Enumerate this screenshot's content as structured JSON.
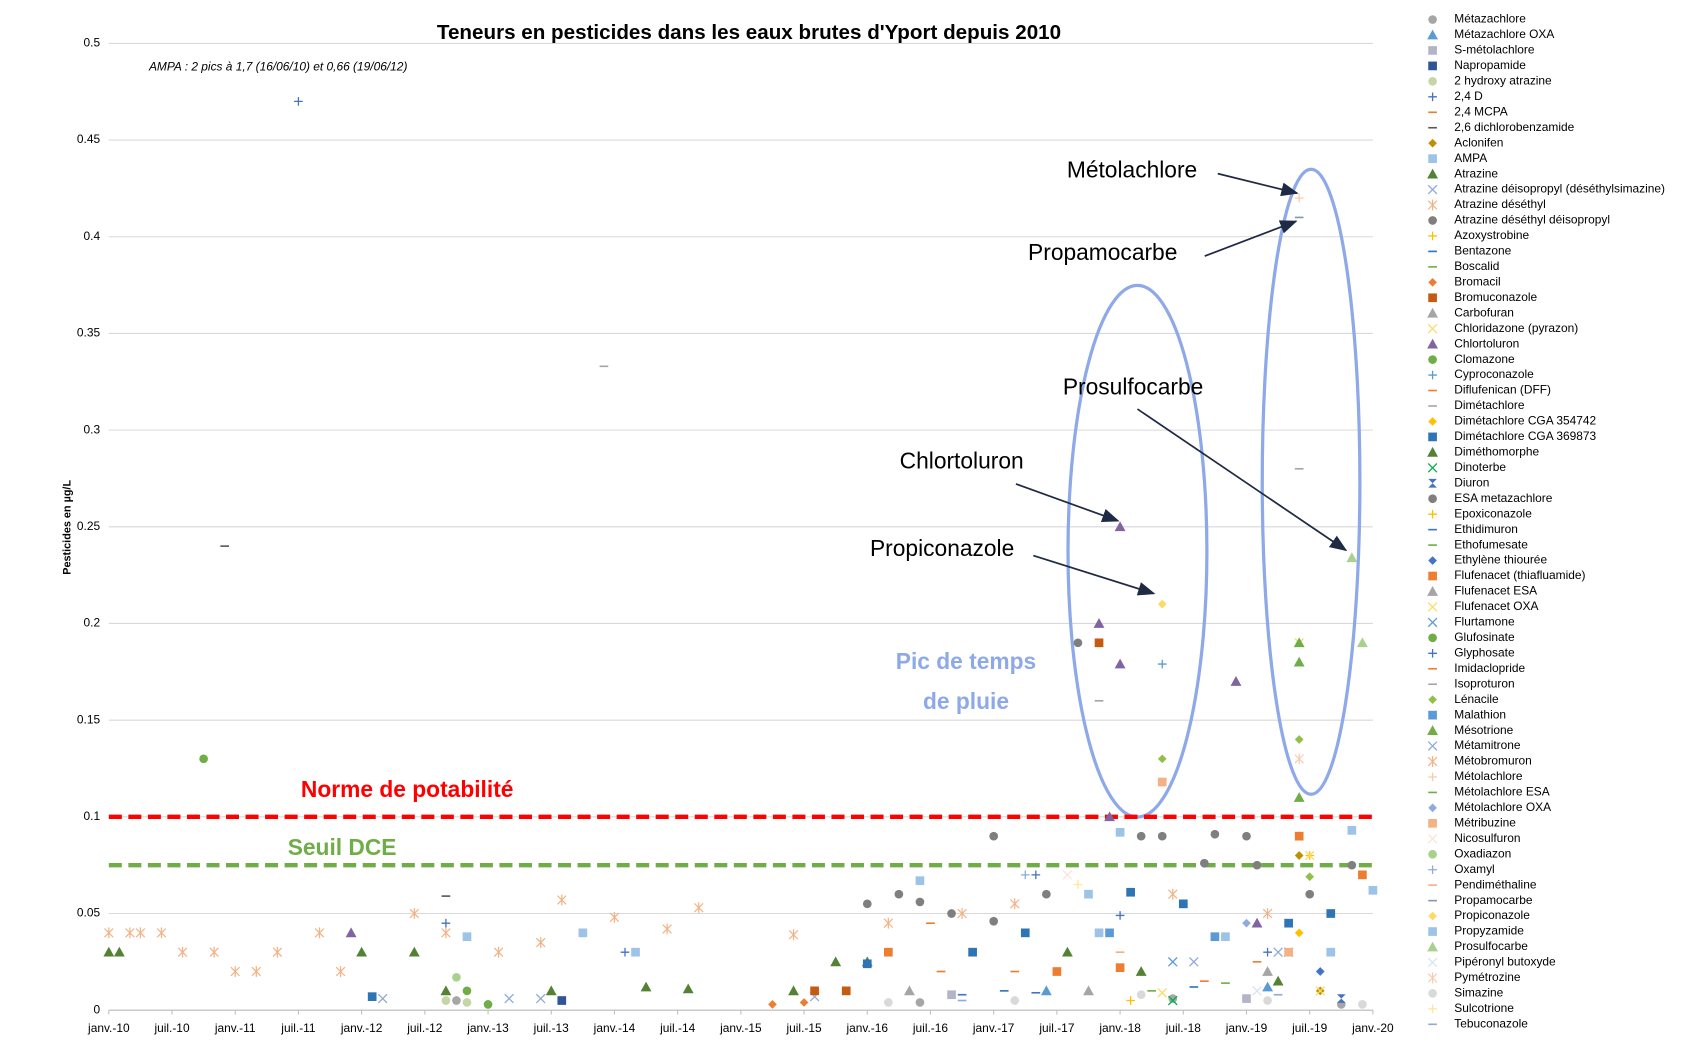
{
  "chart_data": {
    "type": "scatter",
    "title": "Teneurs en pesticides dans les eaux brutes d'Yport depuis 2010",
    "ylabel": "Pesticides en µg/L",
    "note": "AMPA : 2 pics à 1,7 (16/06/10) et 0,66 (19/06/12)",
    "grid": true,
    "legend": "right",
    "xlim": [
      "2010-01",
      "2020-01"
    ],
    "ylim": [
      0,
      0.5
    ],
    "yticks": [
      0,
      0.05,
      0.1,
      0.15,
      0.2,
      0.25,
      0.3,
      0.35,
      0.4,
      0.45,
      0.5
    ],
    "xticks": [
      {
        "value": "2010-01",
        "label": "janv.-10"
      },
      {
        "value": "2010-07",
        "label": "juil.-10"
      },
      {
        "value": "2011-01",
        "label": "janv.-11"
      },
      {
        "value": "2011-07",
        "label": "juil.-11"
      },
      {
        "value": "2012-01",
        "label": "janv.-12"
      },
      {
        "value": "2012-07",
        "label": "juil.-12"
      },
      {
        "value": "2013-01",
        "label": "janv.-13"
      },
      {
        "value": "2013-07",
        "label": "juil.-13"
      },
      {
        "value": "2014-01",
        "label": "janv.-14"
      },
      {
        "value": "2014-07",
        "label": "juil.-14"
      },
      {
        "value": "2015-01",
        "label": "janv.-15"
      },
      {
        "value": "2015-07",
        "label": "juil.-15"
      },
      {
        "value": "2016-01",
        "label": "janv.-16"
      },
      {
        "value": "2016-07",
        "label": "juil.-16"
      },
      {
        "value": "2017-01",
        "label": "janv.-17"
      },
      {
        "value": "2017-07",
        "label": "juil.-17"
      },
      {
        "value": "2018-01",
        "label": "janv.-18"
      },
      {
        "value": "2018-07",
        "label": "juil.-18"
      },
      {
        "value": "2019-01",
        "label": "janv.-19"
      },
      {
        "value": "2019-07",
        "label": "juil.-19"
      },
      {
        "value": "2020-01",
        "label": "janv.-20"
      }
    ],
    "hlines": [
      {
        "label": "Norme de potabilité",
        "value": 0.1,
        "color": "#ff0000"
      },
      {
        "label": "Seuil DCE",
        "value": 0.075,
        "color": "#70ad47"
      }
    ],
    "annotations": [
      "Métolachlore",
      "Propamocarbe",
      "Prosulfocarbe",
      "Chlortoluron",
      "Propiconazole"
    ],
    "rain_note": [
      "Pic de temps",
      "de pluie"
    ],
    "series": [
      {
        "name": "Métazachlore",
        "color": "#a6a6a6",
        "marker": "circle",
        "x": [
          "2012-10",
          "2016-06",
          "2018-06",
          "2019-10"
        ],
        "values": [
          0.005,
          0.004,
          0.006,
          0.003
        ]
      },
      {
        "name": "Métazachlore OXA",
        "color": "#5b9bd5",
        "marker": "triangle",
        "x": [
          "2017-06",
          "2019-03"
        ],
        "values": [
          0.01,
          0.012
        ]
      },
      {
        "name": "S-métolachlore",
        "color": "#b4b4c8",
        "marker": "square",
        "x": [
          "2016-09",
          "2019-01"
        ],
        "values": [
          0.008,
          0.006
        ]
      },
      {
        "name": "Napropamide",
        "color": "#2f5597",
        "marker": "square",
        "x": [
          "2013-08"
        ],
        "values": [
          0.005
        ]
      },
      {
        "name": "2 hydroxy atrazine",
        "color": "#c5d5a8",
        "marker": "circle",
        "x": [
          "2012-09",
          "2012-11"
        ],
        "values": [
          0.005,
          0.004
        ]
      },
      {
        "name": "2,4 D",
        "color": "#4472c4",
        "marker": "plus",
        "x": [
          "2011-07",
          "2012-09"
        ],
        "values": [
          0.47,
          0.045
        ]
      },
      {
        "name": "2,4 MCPA",
        "color": "#ed7d31",
        "marker": "dash",
        "x": [
          "2017-03",
          "2018-09"
        ],
        "values": [
          0.02,
          0.015
        ]
      },
      {
        "name": "2,6 dichlorobenzamide",
        "color": "#595959",
        "marker": "dash",
        "x": [
          "2010-12",
          "2012-09"
        ],
        "values": [
          0.24,
          0.059
        ]
      },
      {
        "name": "Aclonifen",
        "color": "#bf8f00",
        "marker": "diamond",
        "x": [
          "2019-06",
          "2019-08"
        ],
        "values": [
          0.08,
          0.01
        ]
      },
      {
        "name": "AMPA",
        "color": "#9dc3e6",
        "marker": "square",
        "x": [
          "2012-11",
          "2013-10",
          "2014-03",
          "2016-06",
          "2017-10",
          "2018-01",
          "2019-11",
          "2020-01"
        ],
        "values": [
          0.038,
          0.04,
          0.03,
          0.067,
          0.06,
          0.092,
          0.093,
          0.062
        ]
      },
      {
        "name": "Atrazine",
        "color": "#548235",
        "marker": "triangle",
        "x": [
          "2010-01",
          "2010-02",
          "2012-01",
          "2012-06",
          "2012-09",
          "2013-07",
          "2014-04",
          "2014-08",
          "2015-06",
          "2015-10",
          "2016-01"
        ],
        "values": [
          0.03,
          0.03,
          0.03,
          0.03,
          0.01,
          0.01,
          0.012,
          0.011,
          0.01,
          0.025,
          0.025
        ]
      },
      {
        "name": "Atrazine déisopropyl (déséthylsimazine)",
        "color": "#8faadc",
        "marker": "x",
        "x": [
          "2012-03",
          "2013-03",
          "2013-06",
          "2015-08"
        ],
        "values": [
          0.006,
          0.006,
          0.006,
          0.007
        ]
      },
      {
        "name": "Atrazine déséthyl",
        "color": "#f4b183",
        "marker": "star",
        "x": [
          "2010-01",
          "2010-03",
          "2010-04",
          "2010-06",
          "2010-08",
          "2010-11",
          "2011-01",
          "2011-03",
          "2011-05",
          "2011-09",
          "2011-11",
          "2012-06",
          "2012-09",
          "2013-02",
          "2013-06",
          "2013-08",
          "2014-01",
          "2014-06",
          "2014-09",
          "2015-06",
          "2016-03",
          "2016-10",
          "2017-03"
        ],
        "values": [
          0.04,
          0.04,
          0.04,
          0.04,
          0.03,
          0.03,
          0.02,
          0.02,
          0.03,
          0.04,
          0.02,
          0.05,
          0.04,
          0.03,
          0.035,
          0.057,
          0.048,
          0.042,
          0.053,
          0.039,
          0.045,
          0.05,
          0.055
        ]
      },
      {
        "name": "Atrazine déséthyl déisopropyl",
        "color": "#7f7f7f",
        "marker": "circle",
        "x": [
          "2017-01",
          "2018-05",
          "2018-10",
          "2019-01"
        ],
        "values": [
          0.09,
          0.09,
          0.091,
          0.09
        ]
      },
      {
        "name": "Azoxystrobine",
        "color": "#ffc000",
        "marker": "plus",
        "x": [
          "2019-07"
        ],
        "values": [
          0.08
        ]
      },
      {
        "name": "Bentazone",
        "color": "#2e75b6",
        "marker": "dash",
        "x": [
          "2017-02",
          "2018-08"
        ],
        "values": [
          0.01,
          0.012
        ]
      },
      {
        "name": "Boscalid",
        "color": "#70ad47",
        "marker": "dash",
        "x": [
          "2018-02",
          "2019-09"
        ],
        "values": [
          0.075,
          0.03
        ]
      },
      {
        "name": "Bromacil",
        "color": "#ed7d31",
        "marker": "diamond",
        "x": [
          "2015-04",
          "2015-07"
        ],
        "values": [
          0.003,
          0.004
        ]
      },
      {
        "name": "Bromuconazole",
        "color": "#c55a11",
        "marker": "square",
        "x": [
          "2015-08",
          "2015-11",
          "2017-11"
        ],
        "values": [
          0.01,
          0.01,
          0.19
        ]
      },
      {
        "name": "Carbofuran",
        "color": "#a5a5a5",
        "marker": "triangle",
        "x": [
          "2016-05"
        ],
        "values": [
          0.01
        ]
      },
      {
        "name": "Chloridazone (pyrazon)",
        "color": "#ffd966",
        "marker": "x",
        "x": [
          "2019-06",
          "2019-07"
        ],
        "values": [
          0.19,
          0.08
        ]
      },
      {
        "name": "Chlortoluron",
        "color": "#8064a2",
        "marker": "triangle",
        "x": [
          "2011-12",
          "2017-11",
          "2017-12",
          "2018-01",
          "2018-01",
          "2018-12",
          "2019-02"
        ],
        "values": [
          0.04,
          0.2,
          0.1,
          0.25,
          0.179,
          0.17,
          0.045
        ]
      },
      {
        "name": "Clomazone",
        "color": "#70ad47",
        "marker": "circle",
        "x": [
          "2010-10"
        ],
        "values": [
          0.13
        ]
      },
      {
        "name": "Cyproconazole",
        "color": "#5b9bd5",
        "marker": "plus",
        "x": [
          "2018-05"
        ],
        "values": [
          0.179
        ]
      },
      {
        "name": "Diflufenican (DFF)",
        "color": "#ed7d31",
        "marker": "dash",
        "x": [
          "2016-08",
          "2019-02"
        ],
        "values": [
          0.02,
          0.025
        ]
      },
      {
        "name": "Dimétachlore",
        "color": "#a5a5a5",
        "marker": "dash",
        "x": [
          "2017-11"
        ],
        "values": [
          0.16
        ]
      },
      {
        "name": "Dimétachlore CGA 354742",
        "color": "#ffc000",
        "marker": "diamond",
        "x": [
          "2019-06"
        ],
        "values": [
          0.04
        ]
      },
      {
        "name": "Dimétachlore CGA 369873",
        "color": "#2e75b6",
        "marker": "square",
        "x": [
          "2012-02",
          "2016-01",
          "2016-11",
          "2017-04",
          "2018-02",
          "2018-07",
          "2019-05",
          "2019-09"
        ],
        "values": [
          0.007,
          0.024,
          0.03,
          0.04,
          0.061,
          0.055,
          0.045,
          0.05
        ]
      },
      {
        "name": "Diméthomorphe",
        "color": "#548235",
        "marker": "triangle",
        "x": [
          "2017-08",
          "2018-03",
          "2019-04"
        ],
        "values": [
          0.03,
          0.02,
          0.015
        ]
      },
      {
        "name": "Dinoterbe",
        "color": "#00b050",
        "marker": "x",
        "x": [
          "2018-06"
        ],
        "values": [
          0.005
        ]
      },
      {
        "name": "Diuron",
        "color": "#4472c4",
        "marker": "bowtie",
        "x": [
          "2019-10"
        ],
        "values": [
          0.006
        ]
      },
      {
        "name": "ESA metazachlore",
        "color": "#7f7f7f",
        "marker": "circle",
        "x": [
          "2016-01",
          "2016-04",
          "2016-06",
          "2016-09",
          "2017-01",
          "2017-06",
          "2017-09",
          "2018-03",
          "2018-09",
          "2019-02",
          "2019-07",
          "2019-11"
        ],
        "values": [
          0.055,
          0.06,
          0.056,
          0.05,
          0.046,
          0.06,
          0.19,
          0.09,
          0.076,
          0.075,
          0.06,
          0.075
        ]
      },
      {
        "name": "Epoxiconazole",
        "color": "#ffc000",
        "marker": "plus",
        "x": [
          "2018-02"
        ],
        "values": [
          0.005
        ]
      },
      {
        "name": "Ethidimuron",
        "color": "#4472c4",
        "marker": "dash",
        "x": [
          "2016-10",
          "2017-05"
        ],
        "values": [
          0.008,
          0.009
        ]
      },
      {
        "name": "Ethofumesate",
        "color": "#70ad47",
        "marker": "dash",
        "x": [
          "2018-04"
        ],
        "values": [
          0.01
        ]
      },
      {
        "name": "Ethylène thiourée",
        "color": "#4472c4",
        "marker": "diamond",
        "x": [
          "2019-08"
        ],
        "values": [
          0.02
        ]
      },
      {
        "name": "Flufenacet (thiafluamide)",
        "color": "#ed7d31",
        "marker": "square",
        "x": [
          "2016-03",
          "2017-07",
          "2018-01",
          "2019-06",
          "2019-12"
        ],
        "values": [
          0.03,
          0.02,
          0.022,
          0.09,
          0.07
        ]
      },
      {
        "name": "Flufenacet ESA",
        "color": "#a5a5a5",
        "marker": "triangle",
        "x": [
          "2017-10",
          "2019-03"
        ],
        "values": [
          0.01,
          0.02
        ]
      },
      {
        "name": "Flufenacet OXA",
        "color": "#ffd966",
        "marker": "x",
        "x": [
          "2018-05",
          "2019-08"
        ],
        "values": [
          0.009,
          0.01
        ]
      },
      {
        "name": "Flurtamone",
        "color": "#5b9bd5",
        "marker": "x",
        "x": [
          "2018-06",
          "2019-05"
        ],
        "values": [
          0.025,
          0.03
        ]
      },
      {
        "name": "Glufosinate",
        "color": "#70ad47",
        "marker": "circle",
        "x": [
          "2012-11",
          "2013-01"
        ],
        "values": [
          0.01,
          0.003
        ]
      },
      {
        "name": "Glyphosate",
        "color": "#4472c4",
        "marker": "plus",
        "x": [
          "2014-02",
          "2017-05",
          "2018-01",
          "2019-03"
        ],
        "values": [
          0.03,
          0.07,
          0.049,
          0.03
        ]
      },
      {
        "name": "Imidaclopride",
        "color": "#ed7d31",
        "marker": "dash",
        "x": [
          "2016-07"
        ],
        "values": [
          0.045
        ]
      },
      {
        "name": "Isoproturon",
        "color": "#a5a5a5",
        "marker": "dash",
        "x": [
          "2013-12",
          "2019-06"
        ],
        "values": [
          0.333,
          0.28
        ]
      },
      {
        "name": "Lénacile",
        "color": "#92c047",
        "marker": "diamond",
        "x": [
          "2018-05",
          "2019-06",
          "2019-07"
        ],
        "values": [
          0.13,
          0.14,
          0.069
        ]
      },
      {
        "name": "Malathion",
        "color": "#5b9bd5",
        "marker": "square",
        "x": [
          "2017-12",
          "2018-10"
        ],
        "values": [
          0.04,
          0.038
        ]
      },
      {
        "name": "Mésotrione",
        "color": "#70ad47",
        "marker": "triangle",
        "x": [
          "2019-06",
          "2019-06",
          "2019-06"
        ],
        "values": [
          0.19,
          0.18,
          0.11
        ]
      },
      {
        "name": "Métamitrone",
        "color": "#8faadc",
        "marker": "x",
        "x": [
          "2018-08",
          "2019-04"
        ],
        "values": [
          0.025,
          0.03
        ]
      },
      {
        "name": "Métobromuron",
        "color": "#f4b183",
        "marker": "star",
        "x": [
          "2018-06",
          "2019-03"
        ],
        "values": [
          0.06,
          0.05
        ]
      },
      {
        "name": "Métolachlore",
        "color": "#f8cbad",
        "marker": "plus",
        "x": [
          "2019-06"
        ],
        "values": [
          0.42
        ]
      },
      {
        "name": "Métolachlore ESA",
        "color": "#70ad47",
        "marker": "dash",
        "x": [
          "2018-11"
        ],
        "values": [
          0.014
        ]
      },
      {
        "name": "Métolachlore OXA",
        "color": "#8faadc",
        "marker": "diamond",
        "x": [
          "2019-01"
        ],
        "values": [
          0.045
        ]
      },
      {
        "name": "Métribuzine",
        "color": "#f4b183",
        "marker": "square",
        "x": [
          "2018-05",
          "2019-05"
        ],
        "values": [
          0.118,
          0.03
        ]
      },
      {
        "name": "Nicosulfuron",
        "color": "#fbe5d6",
        "marker": "x",
        "x": [
          "2017-08"
        ],
        "values": [
          0.07
        ]
      },
      {
        "name": "Oxadiazon",
        "color": "#a9d18e",
        "marker": "circle",
        "x": [
          "2012-10"
        ],
        "values": [
          0.017
        ]
      },
      {
        "name": "Oxamyl",
        "color": "#8faadc",
        "marker": "plus",
        "x": [
          "2017-04"
        ],
        "values": [
          0.07
        ]
      },
      {
        "name": "Pendiméthaline",
        "color": "#f4b183",
        "marker": "dash",
        "x": [
          "2018-01"
        ],
        "values": [
          0.03
        ]
      },
      {
        "name": "Propamocarbe",
        "color": "#8497b0",
        "marker": "dash",
        "x": [
          "2019-06"
        ],
        "values": [
          0.41
        ]
      },
      {
        "name": "Propiconazole",
        "color": "#ffd966",
        "marker": "diamond",
        "x": [
          "2018-05"
        ],
        "values": [
          0.21
        ]
      },
      {
        "name": "Propyzamide",
        "color": "#9dc3e6",
        "marker": "square",
        "x": [
          "2017-11",
          "2018-11",
          "2019-09"
        ],
        "values": [
          0.04,
          0.038,
          0.03
        ]
      },
      {
        "name": "Prosulfocarbe",
        "color": "#a9d18e",
        "marker": "triangle",
        "x": [
          "2019-11",
          "2019-12"
        ],
        "values": [
          0.234,
          0.19
        ]
      },
      {
        "name": "Pipéronyl butoxyde",
        "color": "#dae3f3",
        "marker": "x",
        "x": [
          "2019-02"
        ],
        "values": [
          0.01
        ]
      },
      {
        "name": "Pymétrozine",
        "color": "#f8cbad",
        "marker": "star",
        "x": [
          "2019-06"
        ],
        "values": [
          0.13
        ]
      },
      {
        "name": "Simazine",
        "color": "#d9d9d9",
        "marker": "circle",
        "x": [
          "2016-03",
          "2017-03",
          "2018-03",
          "2019-03",
          "2019-12"
        ],
        "values": [
          0.004,
          0.005,
          0.008,
          0.005,
          0.003
        ]
      },
      {
        "name": "Sulcotrione",
        "color": "#ffe699",
        "marker": "plus",
        "x": [
          "2017-09"
        ],
        "values": [
          0.065
        ]
      },
      {
        "name": "Tebuconazole",
        "color": "#8faadc",
        "marker": "dash",
        "x": [
          "2016-10",
          "2019-04"
        ],
        "values": [
          0.005,
          0.008
        ]
      }
    ]
  }
}
